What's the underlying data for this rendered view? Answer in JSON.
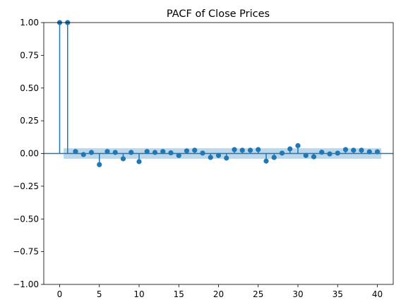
{
  "chart_data": {
    "type": "pacf-stem",
    "title": "PACF of Close Prices",
    "xlabel": "",
    "ylabel": "",
    "xlim": [
      -2,
      42
    ],
    "ylim": [
      -1.0,
      1.0
    ],
    "x_ticks": [
      0,
      5,
      10,
      15,
      20,
      25,
      30,
      35,
      40
    ],
    "x_tick_labels": [
      "0",
      "5",
      "10",
      "15",
      "20",
      "25",
      "30",
      "35",
      "40"
    ],
    "y_ticks": [
      -1.0,
      -0.75,
      -0.5,
      -0.25,
      0.0,
      0.25,
      0.5,
      0.75,
      1.0
    ],
    "y_tick_labels": [
      "−1.00",
      "−0.75",
      "−0.50",
      "−0.25",
      "0.00",
      "0.25",
      "0.50",
      "0.75",
      "1.00"
    ],
    "lags": [
      0,
      1,
      2,
      3,
      4,
      5,
      6,
      7,
      8,
      9,
      10,
      11,
      12,
      13,
      14,
      15,
      16,
      17,
      18,
      19,
      20,
      21,
      22,
      23,
      24,
      25,
      26,
      27,
      28,
      29,
      30,
      31,
      32,
      33,
      34,
      35,
      36,
      37,
      38,
      39,
      40
    ],
    "values": [
      1.0,
      1.0,
      0.015,
      -0.008,
      0.008,
      -0.085,
      0.015,
      0.008,
      -0.04,
      0.008,
      -0.062,
      0.015,
      0.008,
      0.015,
      0.005,
      -0.015,
      0.02,
      0.025,
      0.003,
      -0.03,
      -0.015,
      -0.035,
      0.03,
      0.025,
      0.025,
      0.03,
      -0.058,
      -0.03,
      0.003,
      0.035,
      0.06,
      -0.015,
      -0.025,
      0.01,
      -0.003,
      0.003,
      0.03,
      0.025,
      0.025,
      0.013,
      0.013
    ],
    "confidence_band": [
      -0.04,
      0.04
    ],
    "band_x_range": [
      0.5,
      40.5
    ],
    "colors": {
      "stem": "#1f77b4",
      "band": "#a6c9e2",
      "zero_line": "#1f77b4"
    },
    "grid": false
  }
}
